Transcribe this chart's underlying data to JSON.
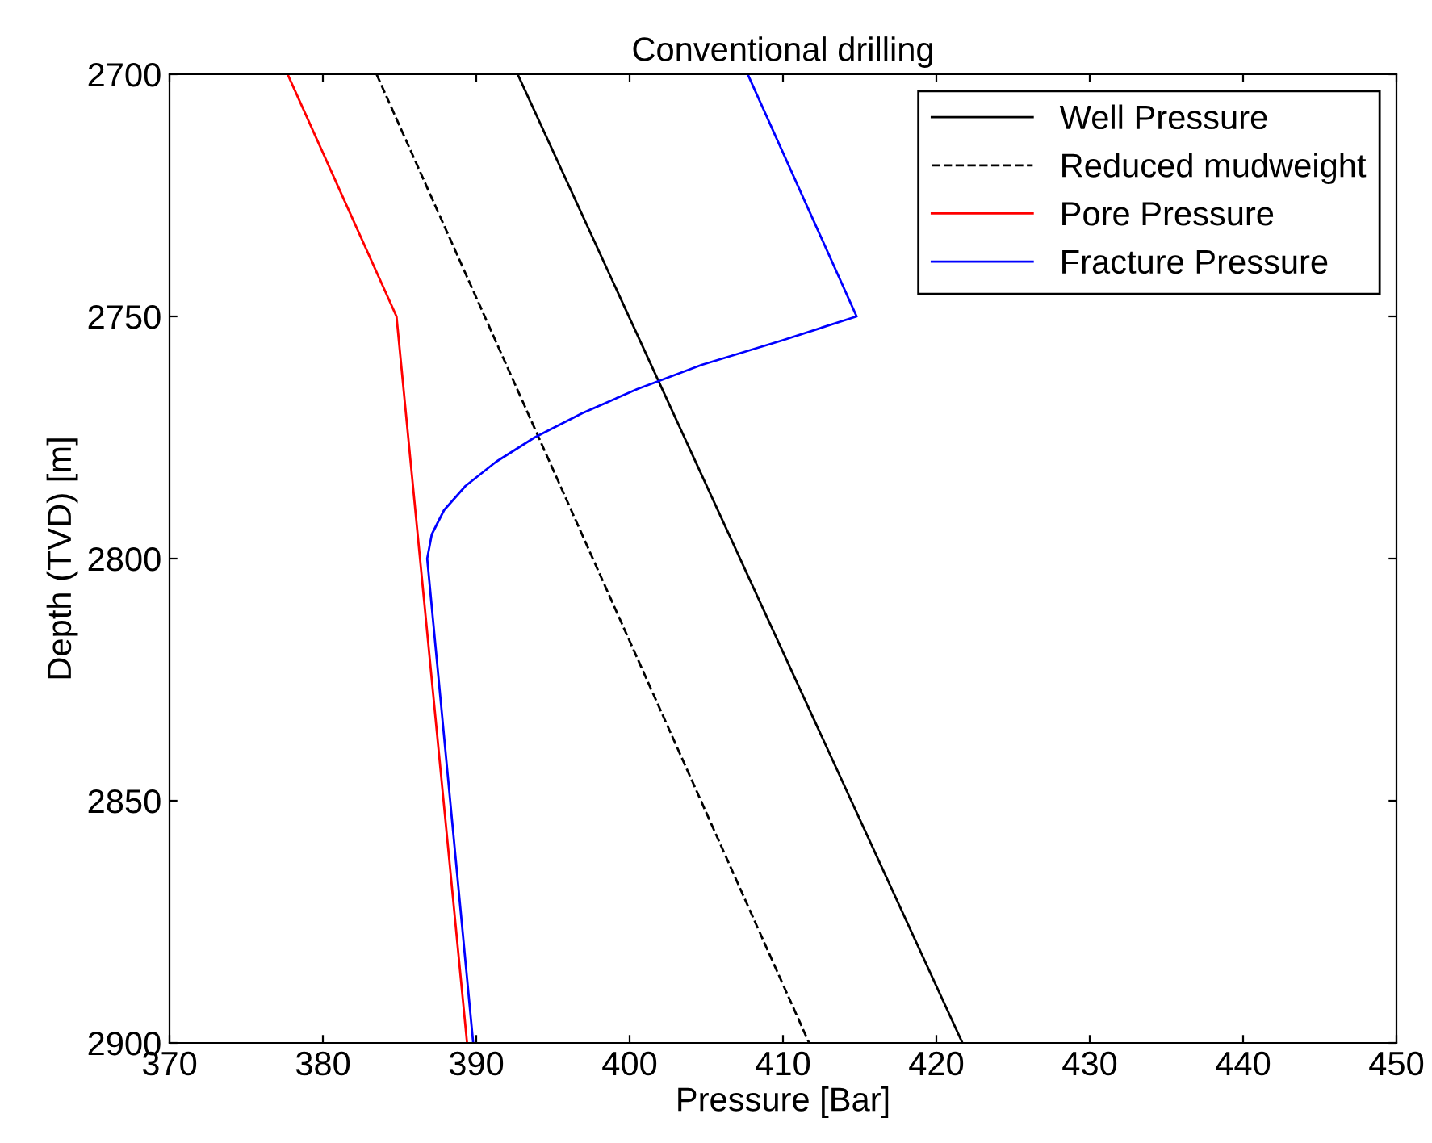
{
  "chart_data": {
    "type": "line",
    "title": "Conventional drilling",
    "xlabel": "Pressure [Bar]",
    "ylabel": "Depth (TVD) [m]",
    "xlim": [
      370,
      450
    ],
    "xticks": [
      370,
      380,
      390,
      400,
      410,
      420,
      430,
      440,
      450
    ],
    "ylim": [
      2900,
      2700
    ],
    "yticks": [
      2700,
      2750,
      2800,
      2850,
      2900
    ],
    "grid": false,
    "legend": "top right",
    "marker": "none",
    "series": [
      {
        "name": "Well Pressure",
        "color": "#000000",
        "line_style": "solid",
        "x": [
          392.7,
          421.7
        ],
        "values": [
          2700,
          2900
        ]
      },
      {
        "name": "Reduced mudweight",
        "color": "#000000",
        "line_style": "dashed",
        "x": [
          383.5,
          411.7
        ],
        "values": [
          2700,
          2900
        ]
      },
      {
        "name": "Pore Pressure",
        "color": "#ff0000",
        "line_style": "solid",
        "x": [
          377.7,
          384.8,
          389.4
        ],
        "values": [
          2700,
          2750,
          2900
        ]
      },
      {
        "name": "Fracture Pressure",
        "color": "#0000ff",
        "line_style": "solid",
        "x": [
          407.7,
          414.8,
          409.9,
          404.7,
          400.5,
          396.9,
          393.8,
          391.3,
          389.3,
          387.9,
          387.1,
          386.8,
          389.8
        ],
        "values": [
          2700,
          2750,
          2755,
          2760,
          2765,
          2770,
          2775,
          2780,
          2785,
          2790,
          2795,
          2800,
          2900
        ]
      }
    ]
  }
}
